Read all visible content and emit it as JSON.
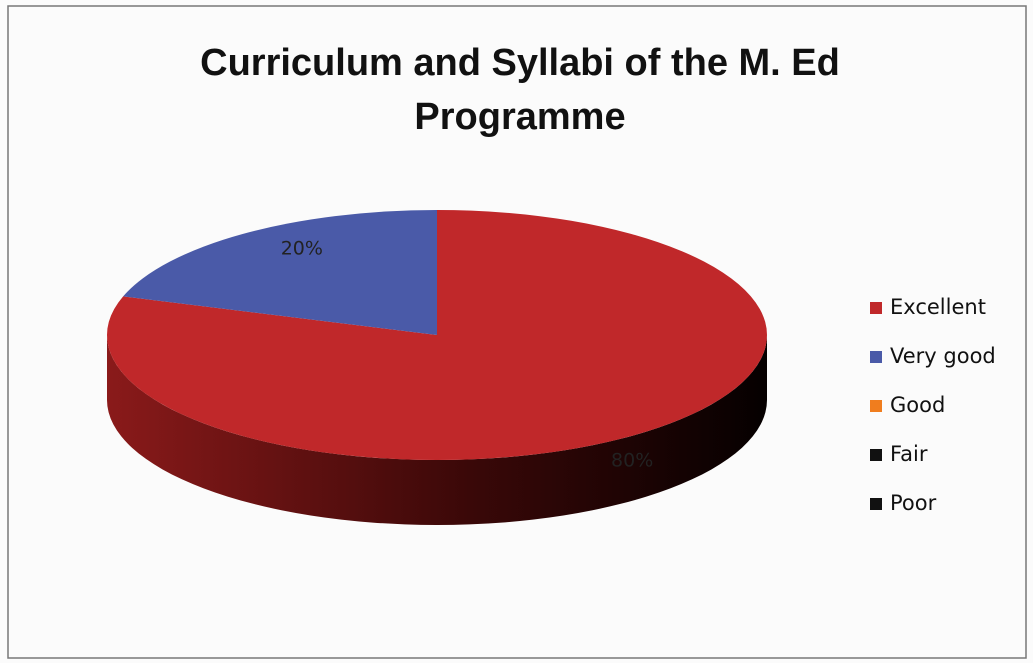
{
  "chart_data": {
    "type": "pie",
    "title": "Curriculum and Syllabi of the  M. Ed Programme",
    "categories": [
      "Excellent",
      "Very good",
      "Good",
      "Fair",
      "Poor"
    ],
    "values": [
      80,
      20,
      0,
      0,
      0
    ],
    "value_labels": [
      "80%",
      "20%",
      null,
      null,
      null
    ],
    "colors": [
      "#c0282a",
      "#4a5aa8",
      "#f07d1e",
      "#111111",
      "#111111"
    ],
    "legend": "right"
  }
}
